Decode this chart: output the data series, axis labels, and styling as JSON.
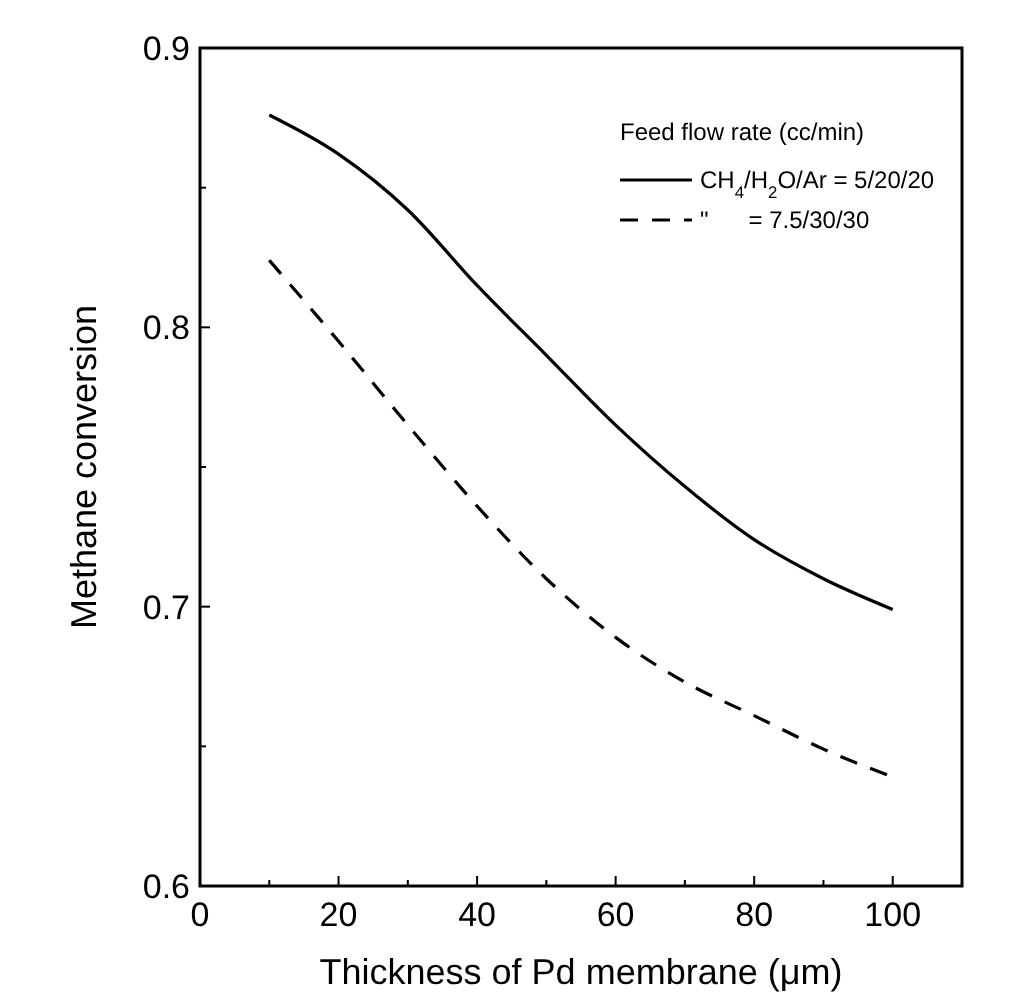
{
  "chart_data": {
    "type": "line",
    "xlabel": "Thickness of Pd membrane (μm)",
    "ylabel": "Methane conversion",
    "legend_title": "Feed flow rate (cc/min)",
    "legend": "top right",
    "x": [
      10,
      20,
      30,
      40,
      50,
      60,
      70,
      80,
      90,
      100
    ],
    "series": [
      {
        "name": "CH$_{4}$/H$_{2}$O/Ar = 5/20/20",
        "color": "#000000",
        "line_style": "solid",
        "values": [
          0.876,
          0.862,
          0.842,
          0.815,
          0.79,
          0.765,
          0.743,
          0.724,
          0.71,
          0.699
        ]
      },
      {
        "name": "\"      = 7.5/30/30",
        "color": "#000000",
        "line_style": "dashed",
        "values": [
          0.824,
          0.795,
          0.765,
          0.736,
          0.71,
          0.689,
          0.673,
          0.661,
          0.649,
          0.639
        ]
      }
    ],
    "xlim": [
      0,
      110
    ],
    "ylim": [
      0.6,
      0.9
    ],
    "xticks": [
      0,
      {
        "value": 10,
        "label": null
      },
      20,
      {
        "value": 30,
        "label": null
      },
      40,
      {
        "value": 50,
        "label": null
      },
      60,
      {
        "value": 70,
        "label": null
      },
      80,
      {
        "value": 90,
        "label": null
      },
      100
    ],
    "yticks": [
      0.6,
      {
        "value": 0.65,
        "label": null
      },
      0.7,
      {
        "value": 0.75,
        "label": null
      },
      0.8,
      {
        "value": 0.85,
        "label": null
      },
      0.9
    ],
    "grid": false
  }
}
